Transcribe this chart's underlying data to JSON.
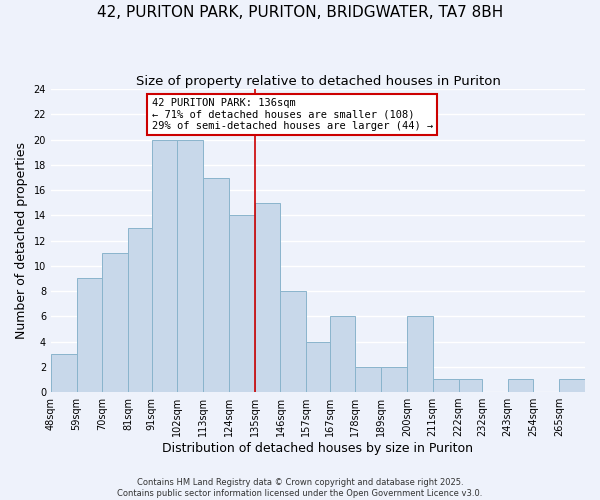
{
  "title1": "42, PURITON PARK, PURITON, BRIDGWATER, TA7 8BH",
  "title2": "Size of property relative to detached houses in Puriton",
  "xlabel": "Distribution of detached houses by size in Puriton",
  "ylabel": "Number of detached properties",
  "bar_edges": [
    48,
    59,
    70,
    81,
    91,
    102,
    113,
    124,
    135,
    146,
    157,
    167,
    178,
    189,
    200,
    211,
    222,
    232,
    243,
    254,
    265
  ],
  "bar_heights": [
    3,
    9,
    11,
    13,
    20,
    20,
    17,
    14,
    15,
    8,
    4,
    6,
    2,
    2,
    6,
    1,
    1,
    0,
    1,
    0,
    1
  ],
  "bar_color": "#c8d8ea",
  "bar_edgecolor": "#8ab4cc",
  "vline_x": 135,
  "vline_color": "#cc0000",
  "ylim": [
    0,
    24
  ],
  "yticks": [
    0,
    2,
    4,
    6,
    8,
    10,
    12,
    14,
    16,
    18,
    20,
    22,
    24
  ],
  "annotation_title": "42 PURITON PARK: 136sqm",
  "annotation_line1": "← 71% of detached houses are smaller (108)",
  "annotation_line2": "29% of semi-detached houses are larger (44) →",
  "annotation_box_facecolor": "#ffffff",
  "annotation_box_edgecolor": "#cc0000",
  "footer1": "Contains HM Land Registry data © Crown copyright and database right 2025.",
  "footer2": "Contains public sector information licensed under the Open Government Licence v3.0.",
  "background_color": "#eef2fb",
  "grid_color": "#ffffff",
  "title1_fontsize": 11,
  "title2_fontsize": 9.5,
  "tick_label_fontsize": 7,
  "axis_label_fontsize": 9,
  "annotation_fontsize": 7.5,
  "footer_fontsize": 6
}
